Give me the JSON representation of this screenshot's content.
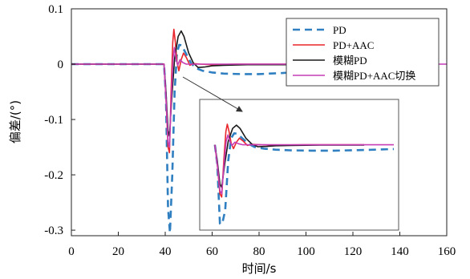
{
  "chart_data": {
    "type": "line",
    "xlabel": "时间/s",
    "ylabel": "偏差/(°)",
    "xlim": [
      0,
      160
    ],
    "ylim": [
      -0.31,
      0.1
    ],
    "x_ticks": [
      0,
      20,
      40,
      60,
      80,
      100,
      120,
      140,
      160
    ],
    "y_ticks": [
      0.1,
      0,
      -0.1,
      -0.2,
      -0.3
    ],
    "x_tick_labels": [
      "0",
      "20",
      "40",
      "60",
      "80",
      "100",
      "120",
      "140",
      "160"
    ],
    "y_tick_labels": [
      "0.1",
      "0",
      "-0.1",
      "-0.2",
      "-0.3"
    ],
    "legend_position": "top-right",
    "grid": false,
    "series": [
      {
        "name": "PD",
        "color": "#2f7fc1",
        "dash": "dashed",
        "points": [
          [
            0,
            0
          ],
          [
            39.5,
            0
          ],
          [
            40.3,
            -0.06
          ],
          [
            41.2,
            -0.26
          ],
          [
            42,
            -0.305
          ],
          [
            43,
            -0.2
          ],
          [
            44,
            -0.05
          ],
          [
            45,
            0.02
          ],
          [
            46,
            0.035
          ],
          [
            47,
            0.034
          ],
          [
            49,
            0.018
          ],
          [
            51,
            0.002
          ],
          [
            53,
            -0.007
          ],
          [
            56,
            -0.012
          ],
          [
            60,
            -0.015
          ],
          [
            65,
            -0.017
          ],
          [
            72,
            -0.018
          ],
          [
            80,
            -0.018
          ],
          [
            90,
            -0.016
          ],
          [
            100,
            -0.013
          ],
          [
            110,
            -0.009
          ],
          [
            120,
            -0.006
          ],
          [
            130,
            -0.004
          ],
          [
            140,
            -0.002
          ]
        ]
      },
      {
        "name": "PD+AAC",
        "color": "#e8262b",
        "dash": "solid",
        "points": [
          [
            0,
            0
          ],
          [
            39.5,
            0
          ],
          [
            40.3,
            -0.06
          ],
          [
            41.2,
            -0.15
          ],
          [
            41.8,
            -0.16
          ],
          [
            42.5,
            -0.05
          ],
          [
            43.2,
            0.04
          ],
          [
            43.7,
            0.063
          ],
          [
            44.3,
            0.04
          ],
          [
            45,
            0.005
          ],
          [
            45.8,
            -0.012
          ],
          [
            46.8,
            0.008
          ],
          [
            47.8,
            0.02
          ],
          [
            49,
            0.012
          ],
          [
            50.5,
            -0.002
          ],
          [
            52,
            0.001
          ],
          [
            55,
            0
          ],
          [
            60,
            -0.001
          ],
          [
            70,
            0
          ],
          [
            90,
            0
          ],
          [
            110,
            0
          ],
          [
            140,
            0
          ]
        ]
      },
      {
        "name": "模糊PD",
        "color": "#1a1a1a",
        "dash": "solid",
        "points": [
          [
            0,
            0
          ],
          [
            39.5,
            0
          ],
          [
            40.3,
            -0.05
          ],
          [
            41.2,
            -0.12
          ],
          [
            41.8,
            -0.13
          ],
          [
            42.8,
            -0.06
          ],
          [
            44,
            0.01
          ],
          [
            45.5,
            0.05
          ],
          [
            46.8,
            0.06
          ],
          [
            48,
            0.05
          ],
          [
            50,
            0.02
          ],
          [
            52,
            0.002
          ],
          [
            54,
            -0.006
          ],
          [
            57,
            -0.005
          ],
          [
            60,
            -0.003
          ],
          [
            65,
            -0.002
          ],
          [
            75,
            -0.001
          ],
          [
            90,
            -0.001
          ],
          [
            110,
            -0.001
          ],
          [
            140,
            -0.002
          ]
        ]
      },
      {
        "name": "模糊PD+AAC切换",
        "color": "#c63db5",
        "dash": "solid",
        "points": [
          [
            0,
            0
          ],
          [
            39.5,
            0
          ],
          [
            40.3,
            -0.06
          ],
          [
            41.2,
            -0.14
          ],
          [
            41.8,
            -0.15
          ],
          [
            42.6,
            -0.06
          ],
          [
            43.3,
            0.01
          ],
          [
            43.9,
            0.03
          ],
          [
            44.6,
            0.01
          ],
          [
            45.3,
            -0.002
          ],
          [
            46.3,
            0.008
          ],
          [
            47.5,
            0.003
          ],
          [
            49,
            0
          ],
          [
            60,
            0
          ],
          [
            80,
            0
          ],
          [
            100,
            0
          ],
          [
            120,
            0
          ],
          [
            140,
            0
          ],
          [
            160,
            0
          ]
        ]
      }
    ]
  }
}
